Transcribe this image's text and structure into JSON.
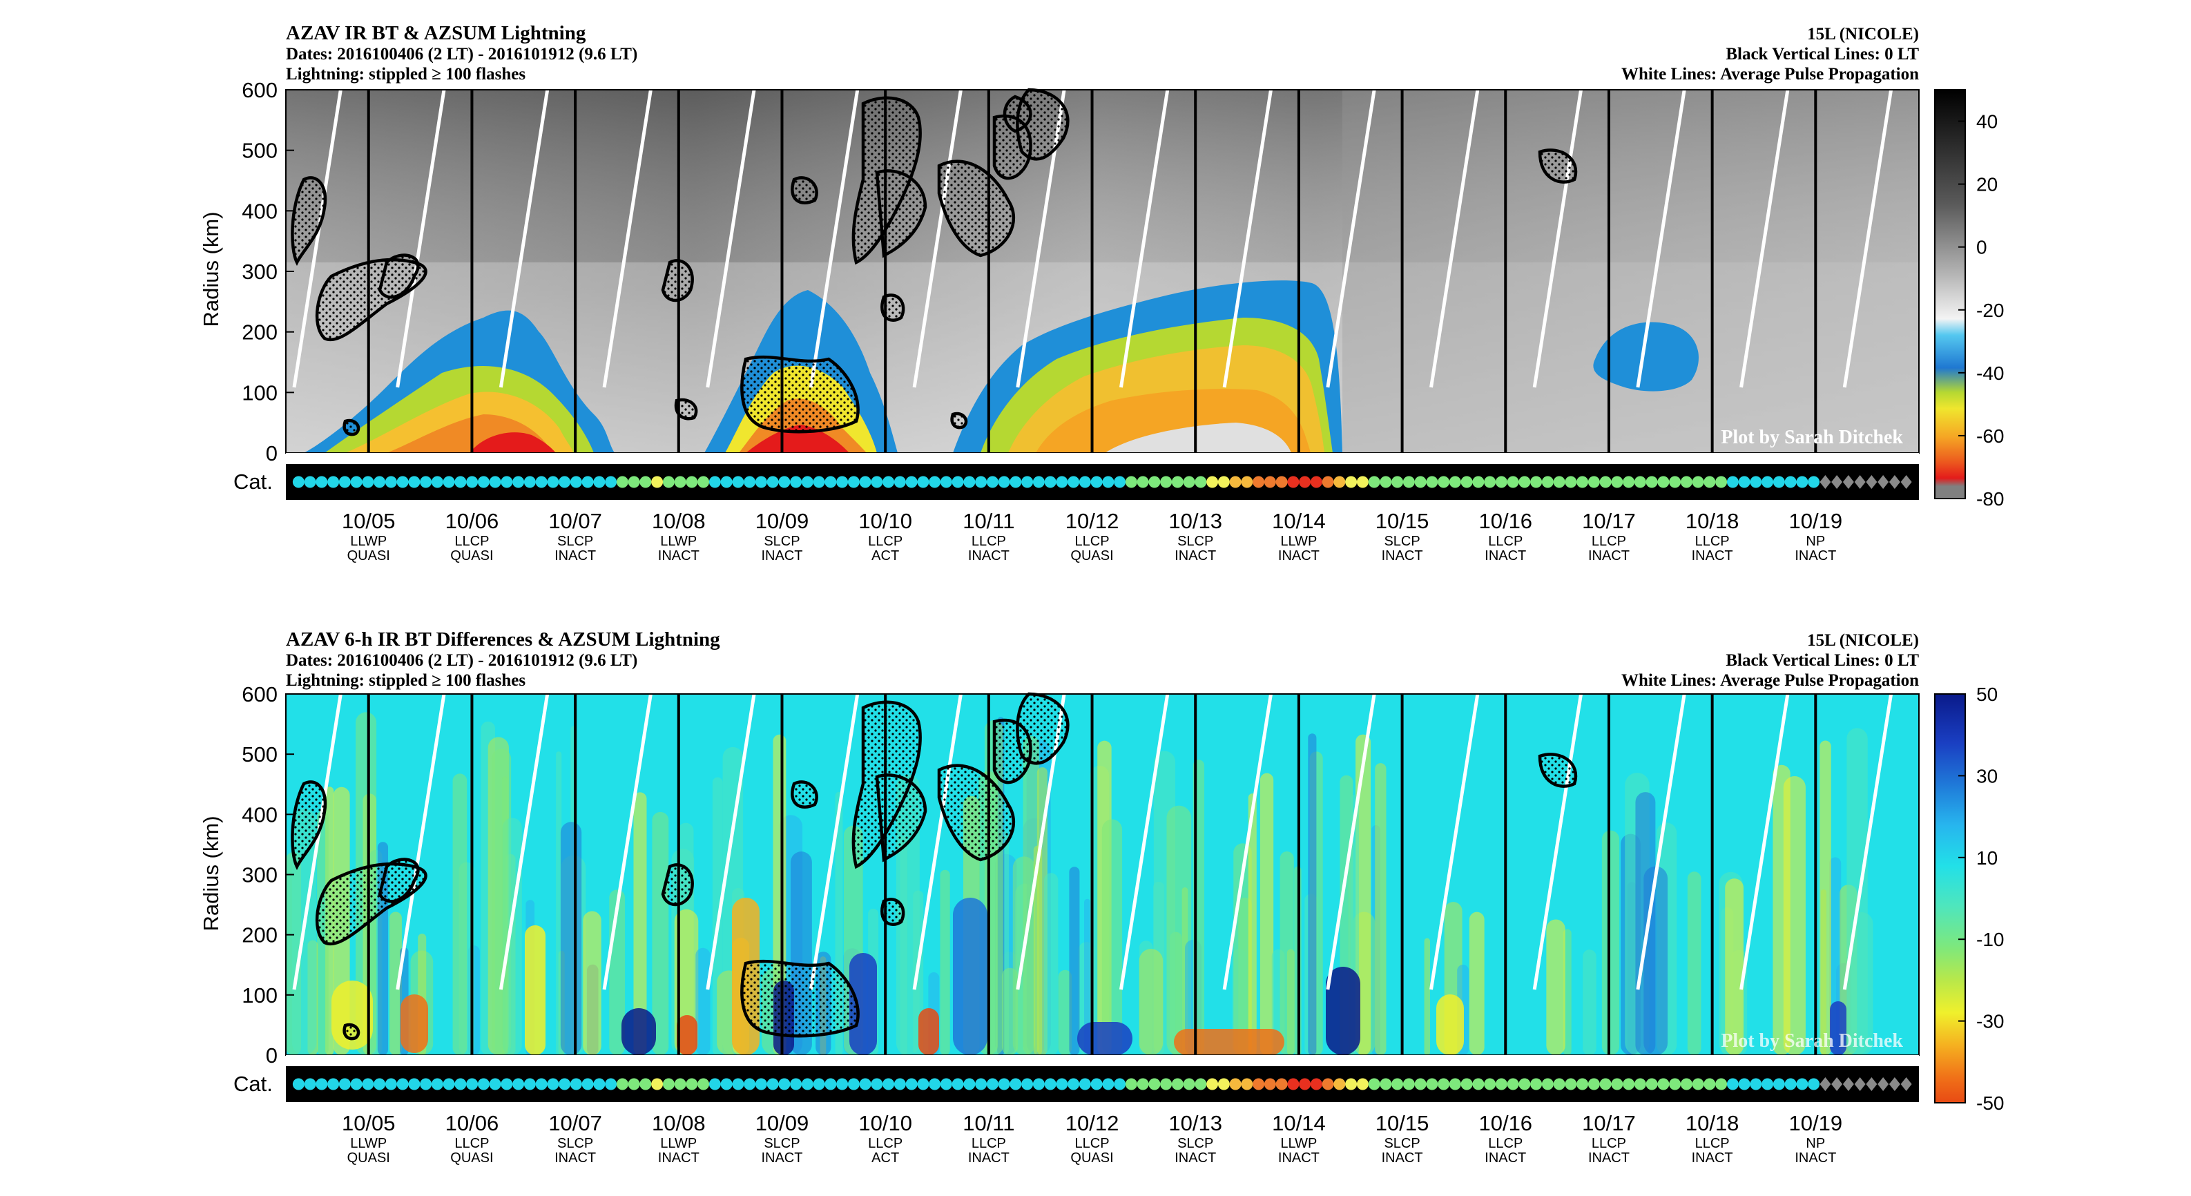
{
  "figure_author_text": "Plot by Sarah Ditchek",
  "cat_label": "Cat.",
  "days": [
    "10/05",
    "10/06",
    "10/07",
    "10/08",
    "10/09",
    "10/10",
    "10/11",
    "10/12",
    "10/13",
    "10/14",
    "10/15",
    "10/16",
    "10/17",
    "10/18",
    "10/19"
  ],
  "stage": [
    "LLWP",
    "LLCP",
    "SLCP",
    "LLWP",
    "SLCP",
    "LLCP",
    "LLCP",
    "LLCP",
    "SLCP",
    "LLWP",
    "SLCP",
    "LLCP",
    "LLCP",
    "LLCP",
    "NP"
  ],
  "activity": [
    "QUASI",
    "QUASI",
    "INACT",
    "INACT",
    "INACT",
    "ACT",
    "INACT",
    "QUASI",
    "INACT",
    "INACT",
    "INACT",
    "INACT",
    "INACT",
    "INACT",
    "INACT"
  ],
  "panels": [
    {
      "title": "AZAV IR BT & AZSUM Lightning",
      "dates": "Dates: 2016100406 (2 LT) - 2016101912 (9.6 LT)",
      "lightning": "Lightning: stippled ≥ 100 flashes",
      "storm": "15L (NICOLE)",
      "black_lines": "Black Vertical Lines: 0 LT",
      "white_lines": "White Lines: Average Pulse Propagation",
      "ylabel": "Radius (km)",
      "yticks": [
        "0",
        "100",
        "200",
        "300",
        "400",
        "500",
        "600"
      ],
      "colorbar_ticks": [
        "40",
        "20",
        "0",
        "-20",
        "-40",
        "-60",
        "-80"
      ]
    },
    {
      "title": "AZAV 6-h IR BT Differences & AZSUM Lightning",
      "dates": "Dates: 2016100406 (2 LT) - 2016101912 (9.6 LT)",
      "lightning": "Lightning: stippled ≥ 100 flashes",
      "storm": "15L (NICOLE)",
      "black_lines": "Black Vertical Lines: 0 LT",
      "white_lines": "White Lines: Average Pulse Propagation",
      "ylabel": "Radius (km)",
      "yticks": [
        "0",
        "100",
        "200",
        "300",
        "400",
        "500",
        "600"
      ],
      "colorbar_ticks": [
        "50",
        "30",
        "10",
        "-10",
        "-30",
        "-50"
      ]
    }
  ],
  "chart_data": [
    {
      "type": "heatmap",
      "title": "AZAV IR BT & AZSUM Lightning",
      "xlabel": "",
      "ylabel": "Radius (km)",
      "ylim": [
        0,
        600
      ],
      "x_tick_labels": [
        "10/05",
        "10/06",
        "10/07",
        "10/08",
        "10/09",
        "10/10",
        "10/11",
        "10/12",
        "10/13",
        "10/14",
        "10/15",
        "10/16",
        "10/17",
        "10/18",
        "10/19"
      ],
      "colorbar_range": [
        -80,
        50
      ],
      "colorbar_ticks": [
        40,
        20,
        0,
        -20,
        -40,
        -60,
        -80
      ],
      "cold_cloud_periods": [
        {
          "from": "10/05",
          "to": "10/07",
          "min_bt": -80
        },
        {
          "from": "10/08.6",
          "to": "10/09.7",
          "min_bt": -80
        },
        {
          "from": "10/10.3",
          "to": "10/14",
          "min_bt": -70
        },
        {
          "from": "10/16.5",
          "to": "10/17",
          "min_bt": -40
        }
      ],
      "colors": {
        "cold": "#e8231f",
        "warm_cloud": "#4d4d4d",
        "cyan_band": "#1f8fd8"
      }
    },
    {
      "type": "heatmap",
      "title": "AZAV 6-h IR BT Differences & AZSUM Lightning",
      "xlabel": "",
      "ylabel": "Radius (km)",
      "ylim": [
        0,
        600
      ],
      "x_tick_labels": [
        "10/05",
        "10/06",
        "10/07",
        "10/08",
        "10/09",
        "10/10",
        "10/11",
        "10/12",
        "10/13",
        "10/14",
        "10/15",
        "10/16",
        "10/17",
        "10/18",
        "10/19"
      ],
      "colorbar_range": [
        -50,
        50
      ],
      "colorbar_ticks": [
        50,
        30,
        10,
        -10,
        -30,
        -50
      ]
    }
  ],
  "category_colors": {
    "TD": "#22d6e8",
    "TS": "#7ee87c",
    "H1": "#f2f25c",
    "H2": "#f5b93d",
    "H3": "#ee7a2e",
    "H4": "#e8301f",
    "EX": "#8a8a8a"
  },
  "category_sequence": [
    "TD",
    "TD",
    "TD",
    "TD",
    "TD",
    "TD",
    "TD",
    "TD",
    "TD",
    "TD",
    "TD",
    "TD",
    "TD",
    "TD",
    "TD",
    "TD",
    "TD",
    "TD",
    "TD",
    "TD",
    "TD",
    "TD",
    "TD",
    "TD",
    "TD",
    "TD",
    "TD",
    "TD",
    "TS",
    "TS",
    "TS",
    "H1",
    "TS",
    "TS",
    "TS",
    "TS",
    "TD",
    "TD",
    "TD",
    "TD",
    "TD",
    "TD",
    "TD",
    "TD",
    "TD",
    "TD",
    "TD",
    "TD",
    "TD",
    "TD",
    "TD",
    "TD",
    "TD",
    "TD",
    "TD",
    "TD",
    "TD",
    "TD",
    "TD",
    "TD",
    "TD",
    "TD",
    "TD",
    "TD",
    "TD",
    "TD",
    "TD",
    "TD",
    "TD",
    "TD",
    "TD",
    "TD",
    "TS",
    "TS",
    "TS",
    "TS",
    "TS",
    "TS",
    "TS",
    "H1",
    "H1",
    "H2",
    "H2",
    "H3",
    "H3",
    "H3",
    "H4",
    "H4",
    "H4",
    "H3",
    "H2",
    "H1",
    "H1",
    "TS",
    "TS",
    "TS",
    "TS",
    "TS",
    "TS",
    "TS",
    "TS",
    "TS",
    "TS",
    "TS",
    "TS",
    "TS",
    "TS",
    "TS",
    "TS",
    "TS",
    "TS",
    "TS",
    "TS",
    "TS",
    "TS",
    "TS",
    "TS",
    "TS",
    "TS",
    "TS",
    "TS",
    "TS",
    "TS",
    "TS",
    "TD",
    "TD",
    "TD",
    "TD",
    "TD",
    "TD",
    "TD",
    "TD",
    "EX",
    "EX",
    "EX",
    "EX",
    "EX",
    "EX",
    "EX",
    "EX"
  ]
}
